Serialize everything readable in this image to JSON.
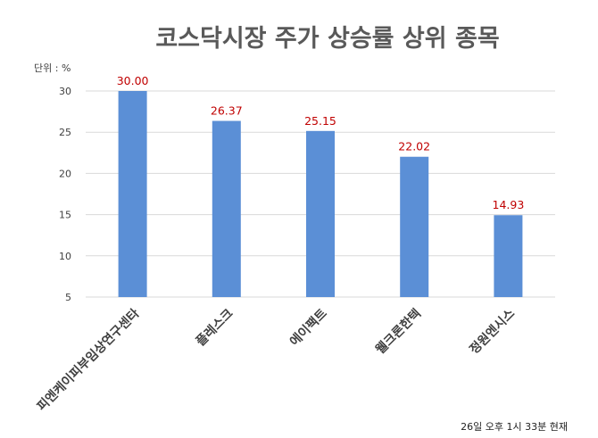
{
  "chart_data": {
    "type": "bar",
    "title": "코스닥시장 주가 상승률 상위 종목",
    "unit_label": "단위 : %",
    "categories": [
      "피엔케이피부임상연구센타",
      "플레스크",
      "에이팩트",
      "웰크론한텍",
      "정원엔시스"
    ],
    "values": [
      30.0,
      26.37,
      25.15,
      22.02,
      14.93
    ],
    "value_labels": [
      "30.00",
      "26.37",
      "25.15",
      "22.02",
      "14.93"
    ],
    "ylim": [
      5,
      30
    ],
    "yticks": [
      "5",
      "10",
      "15",
      "20",
      "25",
      "30"
    ],
    "grid": true,
    "legend": "none",
    "bar_color": "#5b8fd6",
    "label_color": "#c00000",
    "note": "26일 오후 1시 33분 현재"
  }
}
